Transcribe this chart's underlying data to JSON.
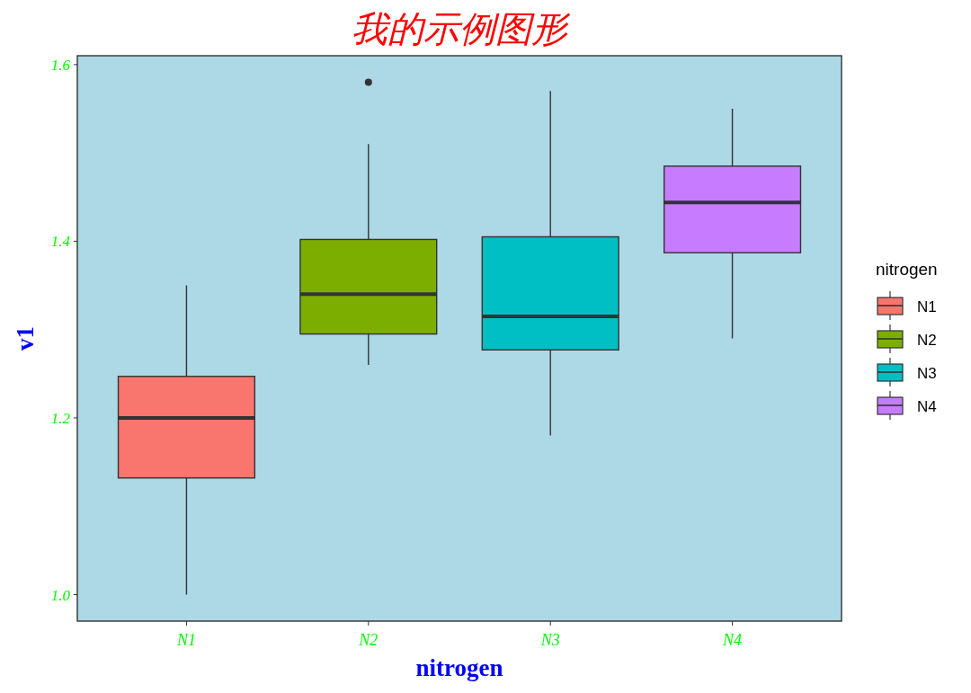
{
  "chart_data": {
    "type": "box",
    "title": "我的示例图形",
    "xlabel": "nitrogen",
    "ylabel": "v1",
    "legend_title": "nitrogen",
    "legend": "right",
    "categories": [
      "N1",
      "N2",
      "N3",
      "N4"
    ],
    "series": [
      {
        "name": "N1",
        "color": "#f8766d",
        "boxes": [
          {
            "low": 1.0,
            "q1": 1.132,
            "median": 1.2,
            "q3": 1.247,
            "high": 1.35
          },
          null,
          null,
          null
        ]
      },
      {
        "name": "N2",
        "color": "#7cae00",
        "boxes": [
          null,
          {
            "low": 1.26,
            "q1": 1.295,
            "median": 1.34,
            "q3": 1.402,
            "high": 1.51,
            "outliers": [
              1.58
            ]
          },
          null,
          null
        ]
      },
      {
        "name": "N3",
        "color": "#00bfc4",
        "boxes": [
          null,
          null,
          {
            "low": 1.18,
            "q1": 1.277,
            "median": 1.315,
            "q3": 1.405,
            "high": 1.57
          },
          null
        ]
      },
      {
        "name": "N4",
        "color": "#c77cff",
        "boxes": [
          null,
          null,
          null,
          {
            "low": 1.29,
            "q1": 1.387,
            "median": 1.444,
            "q3": 1.485,
            "high": 1.55
          }
        ]
      }
    ],
    "ylim": [
      0.97,
      1.61
    ],
    "yticks": [
      {
        "value": 1.0,
        "label": "1.0"
      },
      {
        "value": 1.2,
        "label": "1.2"
      },
      {
        "value": 1.4,
        "label": "1.4"
      },
      {
        "value": 1.6,
        "label": "1.6"
      }
    ],
    "grid": false
  }
}
